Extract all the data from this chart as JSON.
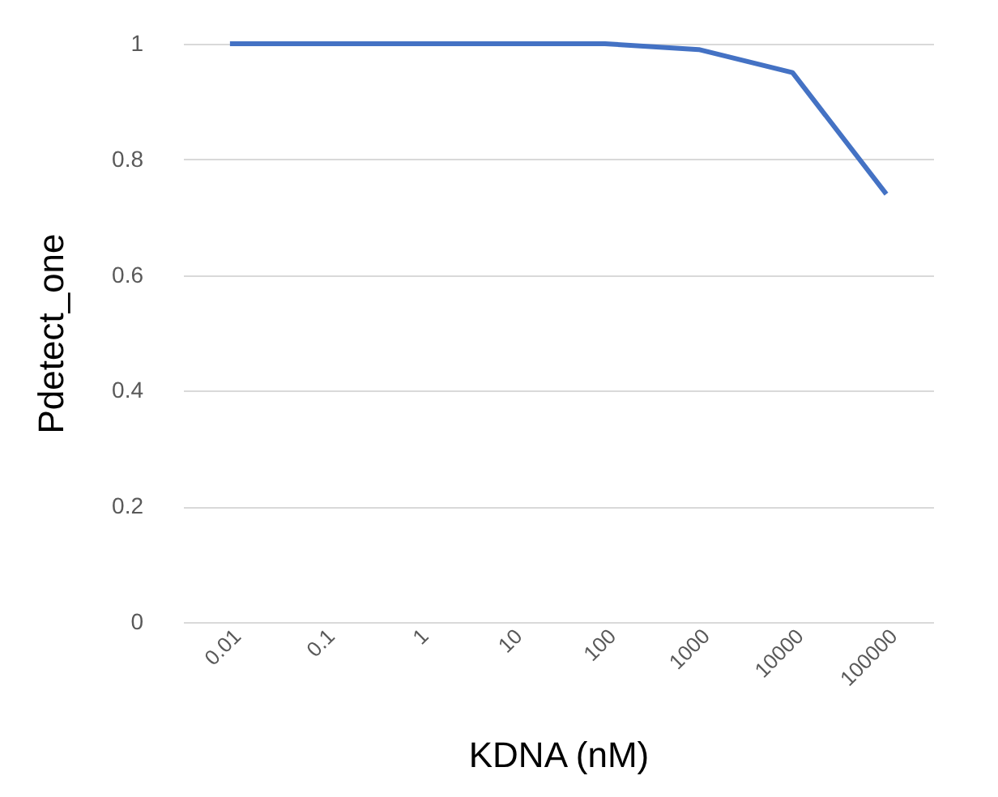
{
  "chart_data": {
    "type": "line",
    "xlabel": "KDNA (nM)",
    "ylabel": "Pdetect_one",
    "categories": [
      "0.01",
      "0.1",
      "1",
      "10",
      "100",
      "1000",
      "10000",
      "100000"
    ],
    "series": [
      {
        "color": "#4472c4",
        "values": [
          1,
          1,
          1,
          1,
          1,
          0.99,
          0.95,
          0.74
        ]
      }
    ],
    "ylim": [
      0,
      1
    ],
    "yticks": [
      0,
      0.2,
      0.4,
      0.6,
      0.8,
      1
    ],
    "grid": "y",
    "marker": "none",
    "line_style": "solid"
  }
}
